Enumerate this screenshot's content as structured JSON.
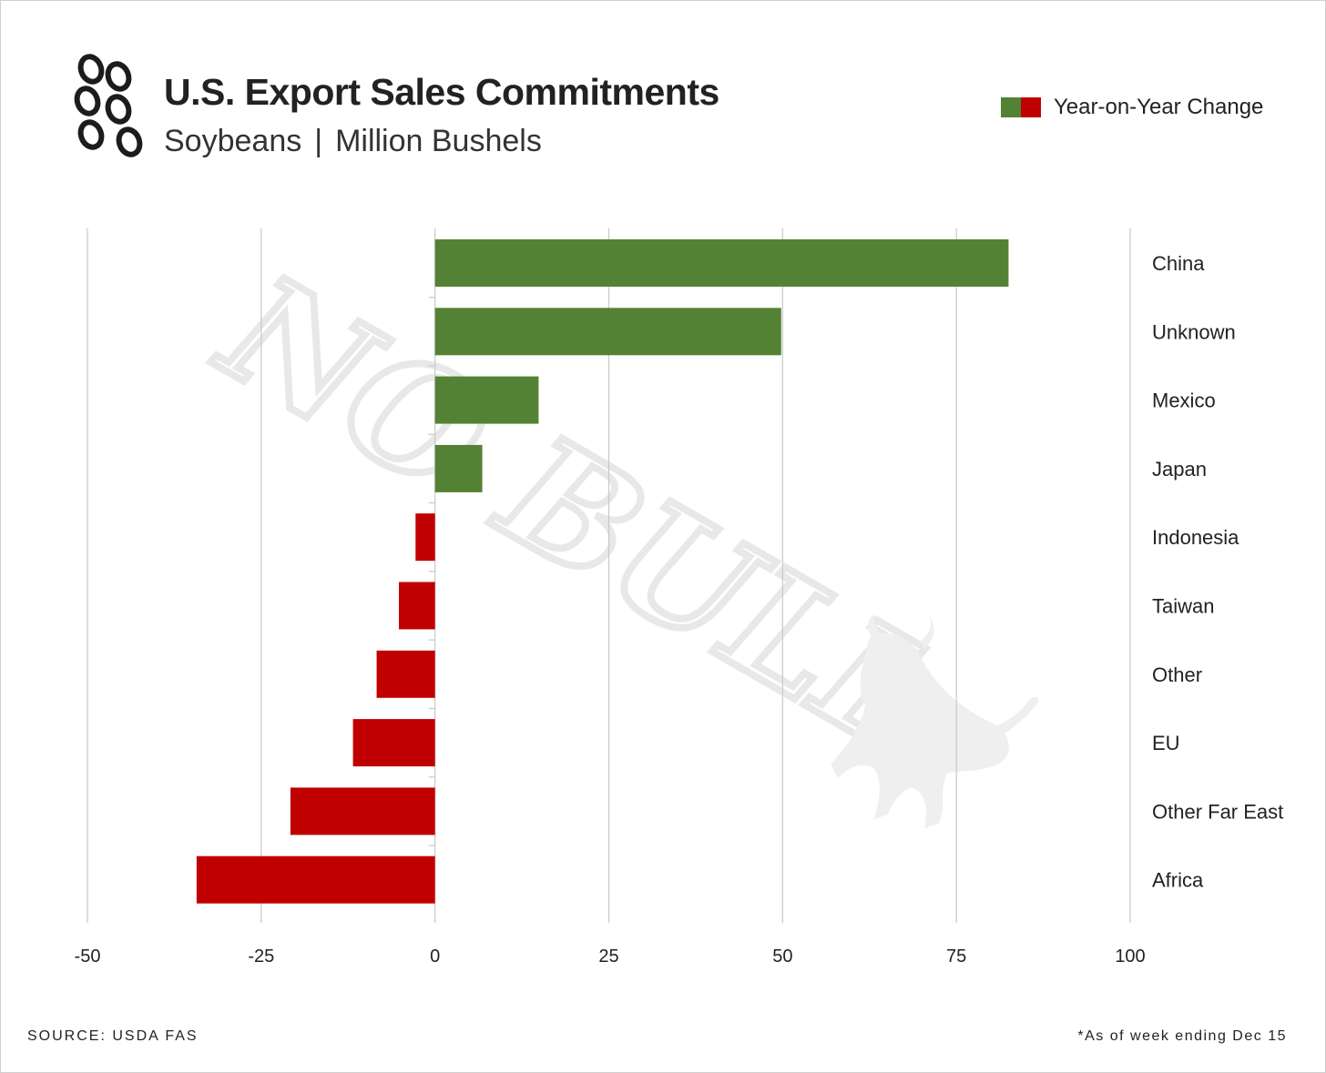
{
  "header": {
    "title": "U.S. Export Sales Commitments",
    "subtitle_commodity": "Soybeans",
    "subtitle_separator": "|",
    "subtitle_unit": "Million Bushels",
    "logo_icon": "soybean-pod-icon"
  },
  "legend": {
    "label": "Year-on-Year Change",
    "positive_color": "#548235",
    "negative_color": "#c00000"
  },
  "watermark": {
    "text": "NO BULL",
    "icon": "bull-icon"
  },
  "footer": {
    "source": "SOURCE: USDA FAS",
    "note": "*As of week ending Dec 15"
  },
  "chart_data": {
    "type": "bar",
    "orientation": "horizontal",
    "categories": [
      "China",
      "Unknown",
      "Mexico",
      "Japan",
      "Indonesia",
      "Taiwan",
      "Other",
      "EU",
      "Other Far East",
      "Africa"
    ],
    "values": [
      82.5,
      49.8,
      14.9,
      6.8,
      -2.8,
      -5.2,
      -8.4,
      -11.8,
      -20.8,
      -34.3
    ],
    "xlim": [
      -50,
      100
    ],
    "xticks": [
      -50,
      -25,
      0,
      25,
      50,
      75,
      100
    ],
    "xtick_labels": [
      "-50",
      "-25",
      "0",
      "25",
      "50",
      "75",
      "100"
    ],
    "grid": "vertical",
    "legend_position": "top-right",
    "category_labels_position": "right"
  }
}
